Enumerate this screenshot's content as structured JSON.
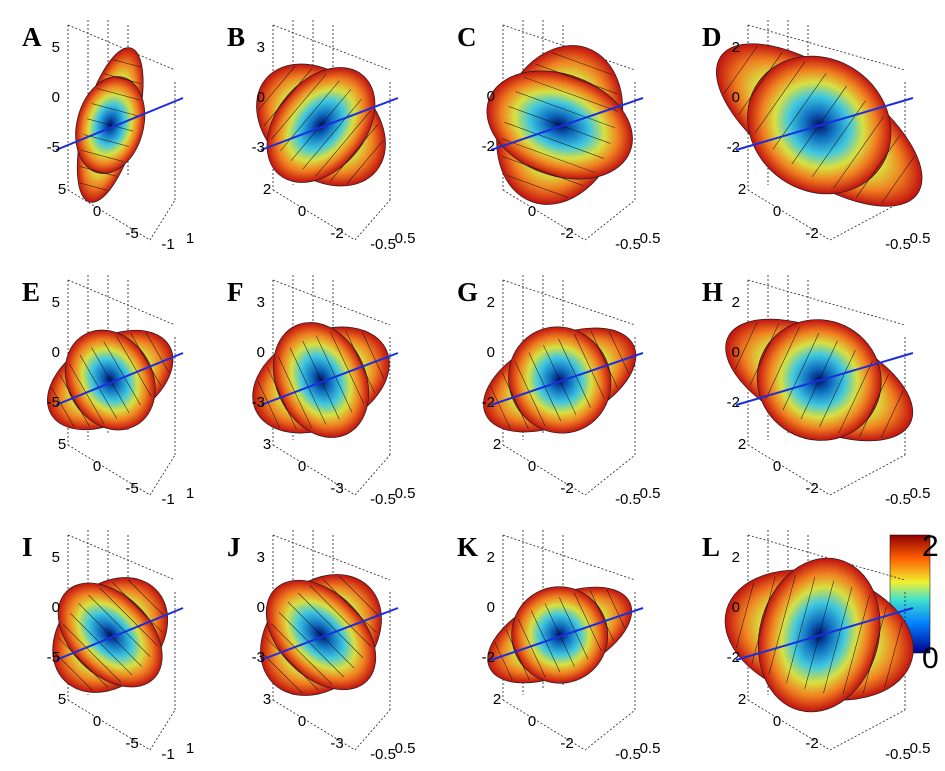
{
  "panels": [
    {
      "label": "A",
      "z_ticks": [
        5,
        0,
        -5
      ],
      "y_ticks": [
        5,
        0,
        -5
      ],
      "x_ticks": [
        -1,
        1
      ]
    },
    {
      "label": "B",
      "z_ticks": [
        3,
        0,
        -3
      ],
      "y_ticks": [
        2,
        0,
        -2
      ],
      "x_ticks": [
        -0.5,
        0.5
      ]
    },
    {
      "label": "C",
      "z_ticks": [
        0,
        -2
      ],
      "y_ticks": [
        0,
        -2
      ],
      "x_ticks": [
        -0.5,
        0.5
      ]
    },
    {
      "label": "D",
      "z_ticks": [
        2,
        0,
        -2
      ],
      "y_ticks": [
        2,
        0,
        -2
      ],
      "x_ticks": [
        -0.5,
        0.5
      ]
    },
    {
      "label": "E",
      "z_ticks": [
        5,
        0,
        -5
      ],
      "y_ticks": [
        5,
        0,
        -5
      ],
      "x_ticks": [
        -1,
        1
      ]
    },
    {
      "label": "F",
      "z_ticks": [
        3,
        0,
        -3
      ],
      "y_ticks": [
        3,
        0,
        -3
      ],
      "x_ticks": [
        -0.5,
        0.5
      ]
    },
    {
      "label": "G",
      "z_ticks": [
        2,
        0,
        -2
      ],
      "y_ticks": [
        2,
        0,
        -2
      ],
      "x_ticks": [
        -0.5,
        0.5
      ]
    },
    {
      "label": "H",
      "z_ticks": [
        2,
        0,
        -2
      ],
      "y_ticks": [
        2,
        0,
        -2
      ],
      "x_ticks": [
        -0.5,
        0.5
      ]
    },
    {
      "label": "I",
      "z_ticks": [
        5,
        0,
        -5
      ],
      "y_ticks": [
        5,
        0,
        -5
      ],
      "x_ticks": [
        -1,
        1
      ]
    },
    {
      "label": "J",
      "z_ticks": [
        3,
        0,
        -3
      ],
      "y_ticks": [
        3,
        0,
        -3
      ],
      "x_ticks": [
        -0.5,
        0.5
      ]
    },
    {
      "label": "K",
      "z_ticks": [
        2,
        0,
        -2
      ],
      "y_ticks": [
        2,
        0,
        -2
      ],
      "x_ticks": [
        -0.5,
        0.5
      ]
    },
    {
      "label": "L",
      "z_ticks": [
        2,
        0,
        -2
      ],
      "y_ticks": [
        2,
        0,
        -2
      ],
      "x_ticks": [
        -0.5,
        0.5
      ]
    }
  ],
  "colorbar": {
    "max": 2,
    "min": 0
  }
}
